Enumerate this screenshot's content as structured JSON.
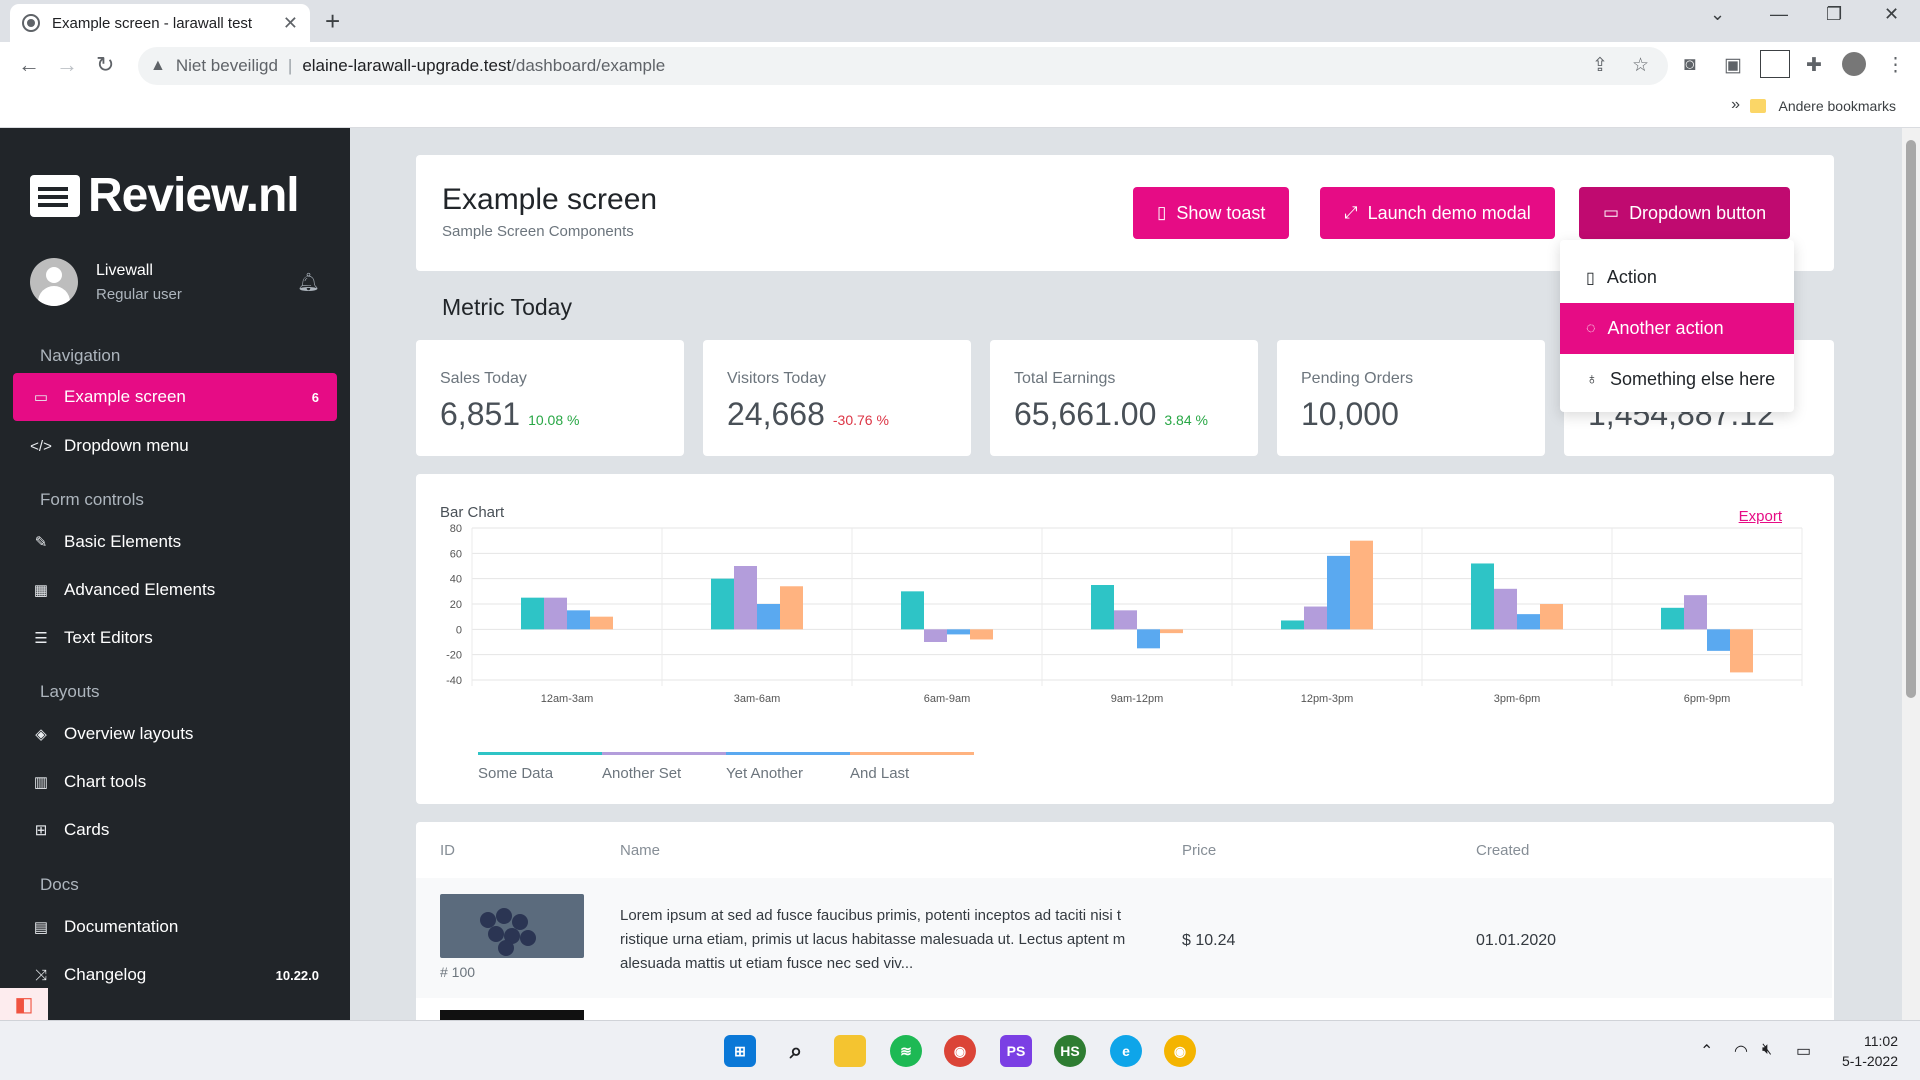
{
  "browser": {
    "tab_title": "Example screen - larawall test",
    "url_warning": "Niet beveiligd",
    "url_host": "elaine-larawall-upgrade.test",
    "url_path": "/dashboard/example",
    "bookmarks_more": "»",
    "bookmark_folder": "Andere bookmarks"
  },
  "sidebar": {
    "logo": "Review.nl",
    "user_name": "Livewall",
    "user_role": "Regular user",
    "sections": {
      "navigation": "Navigation",
      "form_controls": "Form controls",
      "layouts": "Layouts",
      "docs": "Docs"
    },
    "items": [
      {
        "label": "Example screen",
        "badge": "6",
        "icon": "monitor-icon"
      },
      {
        "label": "Dropdown menu",
        "icon": "code-icon"
      },
      {
        "label": "Basic Elements",
        "icon": "edit-icon"
      },
      {
        "label": "Advanced Elements",
        "icon": "calendar-icon"
      },
      {
        "label": "Text Editors",
        "icon": "list-icon"
      },
      {
        "label": "Overview layouts",
        "icon": "layers-icon"
      },
      {
        "label": "Chart tools",
        "icon": "bar-chart-icon"
      },
      {
        "label": "Cards",
        "icon": "grid-icon"
      },
      {
        "label": "Documentation",
        "icon": "book-icon"
      },
      {
        "label": "Changelog",
        "badge": "10.22.0",
        "icon": "shuffle-icon"
      }
    ]
  },
  "header": {
    "title": "Example screen",
    "subtitle": "Sample Screen Components",
    "buttons": {
      "toast": "Show toast",
      "modal": "Launch demo modal",
      "dropdown": "Dropdown button"
    }
  },
  "dropdown_menu": {
    "items": [
      {
        "label": "Action"
      },
      {
        "label": "Another action"
      },
      {
        "label": "Something else here"
      }
    ]
  },
  "metrics": {
    "title": "Metric Today",
    "cards": [
      {
        "label": "Sales Today",
        "value": "6,851",
        "change": "10.08 %"
      },
      {
        "label": "Visitors Today",
        "value": "24,668",
        "change": "-30.76 %"
      },
      {
        "label": "Total Earnings",
        "value": "65,661.00",
        "change": "3.84 %"
      },
      {
        "label": "Pending Orders",
        "value": "10,000",
        "change": ""
      },
      {
        "label": "",
        "value": "1,454,887.12",
        "change": ""
      }
    ]
  },
  "chart_card": {
    "title": "Bar Chart",
    "export": "Export"
  },
  "chart_data": {
    "type": "bar",
    "title": "Bar Chart",
    "categories": [
      "12am-3am",
      "3am-6am",
      "6am-9am",
      "9am-12pm",
      "12pm-3pm",
      "3pm-6pm",
      "6pm-9pm"
    ],
    "series": [
      {
        "name": "Some Data",
        "color": "#2ec4c6",
        "values": [
          25,
          40,
          30,
          35,
          7,
          52,
          17
        ]
      },
      {
        "name": "Another Set",
        "color": "#b39ddb",
        "values": [
          25,
          50,
          -10,
          15,
          18,
          32,
          27
        ]
      },
      {
        "name": "Yet Another",
        "color": "#5aa9f0",
        "values": [
          15,
          20,
          -4,
          -15,
          58,
          12,
          -17
        ]
      },
      {
        "name": "And Last",
        "color": "#ffb380",
        "values": [
          10,
          34,
          -8,
          -3,
          70,
          20,
          -34
        ]
      }
    ],
    "ylim": [
      -40,
      80
    ],
    "yticks": [
      80,
      60,
      40,
      20,
      0,
      -20,
      -40
    ],
    "grid": true,
    "legend": "bottom-left"
  },
  "table": {
    "headers": [
      "ID",
      "Name",
      "Price",
      "Created"
    ],
    "rows": [
      {
        "id": "# 100",
        "name": "Lorem ipsum at sed ad fusce faucibus primis, potenti inceptos ad taciti nisi t ristique urna etiam, primis ut lacus habitasse malesuada ut. Lectus aptent m alesuada mattis ut etiam fusce nec sed viv...",
        "price": "$ 10.24",
        "created": "01.01.2020"
      }
    ]
  },
  "taskbar": {
    "time": "11:02",
    "date": "5-1-2022",
    "apps": [
      "windows-start",
      "search",
      "file-explorer",
      "spotify",
      "chrome",
      "phpstorm",
      "heidisql",
      "edge",
      "chrome-canary"
    ]
  }
}
